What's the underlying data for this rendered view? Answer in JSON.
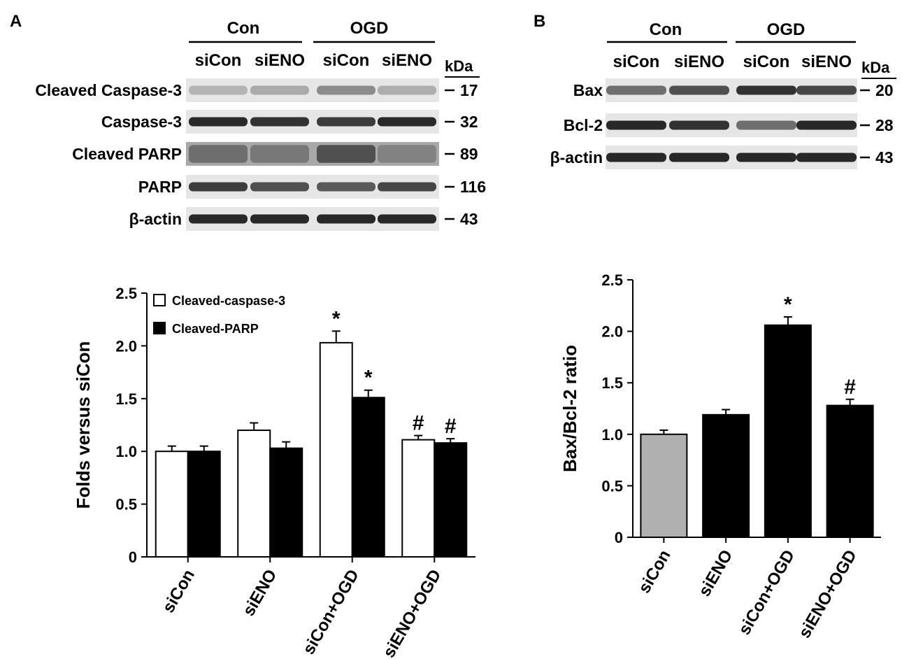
{
  "panels": [
    {
      "letter": "A",
      "blot": {
        "groups": [
          "Con",
          "OGD"
        ],
        "lanes": [
          "siCon",
          "siENO",
          "siCon",
          "siENO"
        ],
        "unit": "kDa",
        "rows": [
          {
            "label": "Cleaved Caspase-3",
            "kda": "17",
            "intensity": [
              0.25,
              0.3,
              0.45,
              0.28
            ],
            "diffuse": false
          },
          {
            "label": "Caspase-3",
            "kda": "32",
            "intensity": [
              0.95,
              0.9,
              0.85,
              0.95
            ],
            "diffuse": false
          },
          {
            "label": "Cleaved PARP",
            "kda": "89",
            "intensity": [
              0.6,
              0.55,
              0.75,
              0.5
            ],
            "diffuse": true
          },
          {
            "label": "PARP",
            "kda": "116",
            "intensity": [
              0.85,
              0.75,
              0.7,
              0.8
            ],
            "diffuse": false
          },
          {
            "label": "β-actin",
            "kda": "43",
            "intensity": [
              0.95,
              0.95,
              0.95,
              0.95
            ],
            "diffuse": false
          }
        ]
      }
    },
    {
      "letter": "B",
      "blot": {
        "groups": [
          "Con",
          "OGD"
        ],
        "lanes": [
          "siCon",
          "siENO",
          "siCon",
          "siENO"
        ],
        "unit": "kDa",
        "rows": [
          {
            "label": "Bax",
            "kda": "20",
            "intensity": [
              0.6,
              0.75,
              0.9,
              0.8
            ],
            "diffuse": false
          },
          {
            "label": "Bcl-2",
            "kda": "28",
            "intensity": [
              0.95,
              0.9,
              0.6,
              0.95
            ],
            "diffuse": false
          },
          {
            "label": "β-actin",
            "kda": "43",
            "intensity": [
              0.95,
              0.95,
              0.95,
              0.95
            ],
            "diffuse": false
          }
        ]
      }
    }
  ],
  "chart_data": [
    {
      "type": "bar",
      "ylabel": "Folds versus siCon",
      "ylim": [
        0,
        2.5
      ],
      "yticks": [
        "0",
        "0.5",
        "1.0",
        "1.5",
        "2.0",
        "2.5"
      ],
      "categories": [
        "siCon",
        "siENO",
        "siCon+OGD",
        "siENO+OGD"
      ],
      "legend_position": "top-left",
      "series": [
        {
          "name": "Cleaved-caspase-3",
          "fill": "#ffffff",
          "values": [
            1.0,
            1.2,
            2.03,
            1.11
          ],
          "errors": [
            0.05,
            0.07,
            0.11,
            0.04
          ],
          "annotations": [
            "",
            "",
            "*",
            "#"
          ]
        },
        {
          "name": "Cleaved-PARP",
          "fill": "#000000",
          "values": [
            1.0,
            1.03,
            1.51,
            1.08
          ],
          "errors": [
            0.05,
            0.06,
            0.07,
            0.04
          ],
          "annotations": [
            "",
            "",
            "*",
            "#"
          ]
        }
      ]
    },
    {
      "type": "bar",
      "ylabel": "Bax/Bcl-2 ratio",
      "ylim": [
        0,
        2.5
      ],
      "yticks": [
        "0",
        "0.5",
        "1.0",
        "1.5",
        "2.0",
        "2.5"
      ],
      "categories": [
        "siCon",
        "siENO",
        "siCon+OGD",
        "siENO+OGD"
      ],
      "values": [
        1.0,
        1.19,
        2.06,
        1.28
      ],
      "errors": [
        0.04,
        0.05,
        0.08,
        0.06
      ],
      "annotations": [
        "",
        "",
        "*",
        "#"
      ],
      "bar_colors": [
        "#b0b0b0",
        "#000000",
        "#000000",
        "#000000"
      ]
    }
  ]
}
